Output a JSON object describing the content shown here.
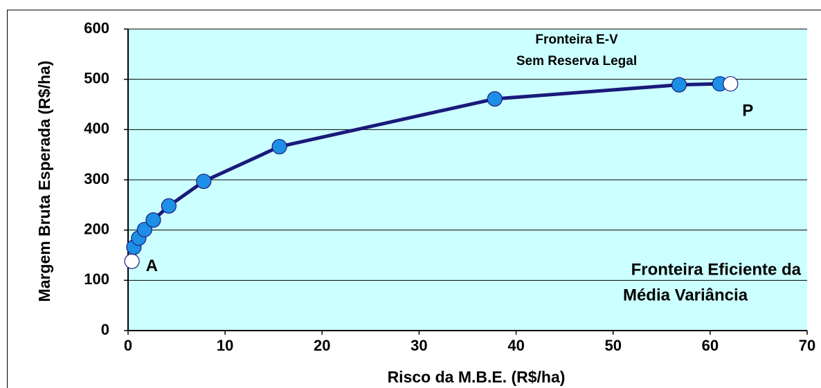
{
  "chart_data": {
    "type": "line",
    "xlabel": "Risco da M.B.E. (R$/ha)",
    "ylabel": "Margem Bruta Esperada (R$/ha)",
    "x": [
      0.4,
      0.6,
      1.1,
      1.7,
      2.6,
      4.2,
      7.8,
      15.6,
      37.8,
      56.8,
      61.0,
      62.1
    ],
    "values": [
      138,
      166,
      184,
      201,
      220,
      248,
      297,
      366,
      461,
      489,
      491,
      491
    ],
    "point_labels": [
      "A",
      null,
      null,
      null,
      null,
      null,
      null,
      null,
      null,
      null,
      null,
      "P"
    ],
    "marker_colors": [
      "#ffffff",
      "#1e8fe6",
      "#1e8fe6",
      "#1e8fe6",
      "#1e8fe6",
      "#1e8fe6",
      "#1e8fe6",
      "#1e8fe6",
      "#1e8fe6",
      "#1e8fe6",
      "#1e8fe6",
      "#ffffff"
    ],
    "color": "#1a1a7a",
    "background": "#ccffff",
    "xlim": [
      0,
      70
    ],
    "xticks": [
      0,
      10,
      20,
      30,
      40,
      50,
      60,
      70
    ],
    "ylim": [
      0,
      600
    ],
    "yticks": [
      0,
      100,
      200,
      300,
      400,
      500,
      600
    ],
    "grid": true,
    "annotations": [
      "Fronteira E-V",
      "Sem Reserva Legal",
      "Fronteira Eficiente da",
      "Média Variância"
    ]
  }
}
